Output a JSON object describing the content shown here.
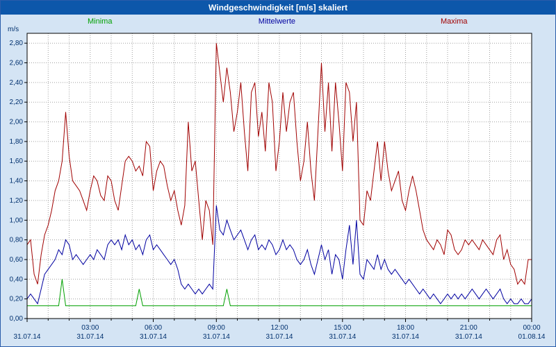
{
  "window": {
    "title": "Windgeschwindigkeit [m/s] skaliert"
  },
  "colors": {
    "background": "#d4e4f4",
    "titlebar": "#0d57aa",
    "window_border": "#2a5caa",
    "grid": "#a0a0a0",
    "axis_text": "#00306e",
    "plot_background": "#ffffff",
    "plot_border": "#000000",
    "minima": "#00a000",
    "mittelwerte": "#0000a0",
    "maxima": "#a00000"
  },
  "chart_data": {
    "type": "line",
    "title": "Windgeschwindigkeit [m/s] skaliert",
    "ylabel": "m/s",
    "xlabel": "",
    "grid": true,
    "legend_position": "top",
    "x_range_hours": [
      0,
      24
    ],
    "ylim": [
      0,
      2.9
    ],
    "sample_interval_minutes": 10,
    "y_tick_values": [
      0,
      0.2,
      0.4,
      0.6,
      0.8,
      1.0,
      1.2,
      1.4,
      1.6,
      1.8,
      2.0,
      2.2,
      2.4,
      2.6,
      2.8
    ],
    "y_tick_labels": [
      "0,00",
      "0,20",
      "0,40",
      "0,60",
      "0,80",
      "1,00",
      "1,20",
      "1,40",
      "1,60",
      "1,80",
      "2,00",
      "2,20",
      "2,40",
      "2,60",
      "2,80"
    ],
    "x_tick_hours": [
      3,
      6,
      9,
      12,
      15,
      18,
      21,
      24
    ],
    "x_tick_labels": [
      "03:00",
      "06:00",
      "09:00",
      "12:00",
      "15:00",
      "18:00",
      "21:00",
      "00:00"
    ],
    "x_date_hours": [
      0,
      3,
      6,
      9,
      12,
      15,
      18,
      21,
      24
    ],
    "x_date_labels": [
      "31.07.14",
      "31.07.14",
      "31.07.14",
      "31.07.14",
      "31.07.14",
      "31.07.14",
      "31.07.14",
      "31.07.14",
      "01.08.14"
    ],
    "series": [
      {
        "name": "Minima",
        "color": "#00a000",
        "values": [
          0.13,
          0.13,
          0.13,
          0.13,
          0.13,
          0.13,
          0.13,
          0.13,
          0.13,
          0.13,
          0.4,
          0.13,
          0.13,
          0.13,
          0.13,
          0.13,
          0.13,
          0.13,
          0.13,
          0.13,
          0.13,
          0.13,
          0.13,
          0.13,
          0.13,
          0.13,
          0.13,
          0.13,
          0.13,
          0.13,
          0.13,
          0.13,
          0.3,
          0.13,
          0.13,
          0.13,
          0.13,
          0.13,
          0.13,
          0.13,
          0.13,
          0.13,
          0.13,
          0.13,
          0.13,
          0.13,
          0.13,
          0.13,
          0.13,
          0.13,
          0.13,
          0.13,
          0.13,
          0.13,
          0.13,
          0.13,
          0.13,
          0.3,
          0.13,
          0.13,
          0.13,
          0.13,
          0.13,
          0.13,
          0.13,
          0.13,
          0.13,
          0.13,
          0.13,
          0.13,
          0.13,
          0.13,
          0.13,
          0.13,
          0.13,
          0.13,
          0.13,
          0.13,
          0.13,
          0.13,
          0.13,
          0.13,
          0.13,
          0.13,
          0.13,
          0.13,
          0.13,
          0.13,
          0.13,
          0.13,
          0.13,
          0.13,
          0.13,
          0.13,
          0.13,
          0.13,
          0.13,
          0.13,
          0.13,
          0.13,
          0.13,
          0.13,
          0.13,
          0.13,
          0.13,
          0.13,
          0.13,
          0.13,
          0.13,
          0.13,
          0.13,
          0.13,
          0.13,
          0.13,
          0.13,
          0.13,
          0.13,
          0.13,
          0.13,
          0.13,
          0.13,
          0.13,
          0.13,
          0.13,
          0.13,
          0.13,
          0.13,
          0.13,
          0.13,
          0.13,
          0.13,
          0.13,
          0.13,
          0.13,
          0.13,
          0.13,
          0.13,
          0.13,
          0.13,
          0.13,
          0.13,
          0.13,
          0.13,
          0.13,
          0.13
        ]
      },
      {
        "name": "Mittelwerte",
        "color": "#0000a0",
        "values": [
          0.2,
          0.25,
          0.2,
          0.15,
          0.3,
          0.45,
          0.5,
          0.55,
          0.6,
          0.7,
          0.65,
          0.8,
          0.75,
          0.6,
          0.65,
          0.6,
          0.55,
          0.6,
          0.65,
          0.6,
          0.7,
          0.65,
          0.6,
          0.75,
          0.8,
          0.75,
          0.8,
          0.7,
          0.85,
          0.75,
          0.8,
          0.7,
          0.75,
          0.65,
          0.8,
          0.85,
          0.7,
          0.75,
          0.7,
          0.65,
          0.6,
          0.55,
          0.6,
          0.5,
          0.35,
          0.3,
          0.35,
          0.3,
          0.25,
          0.3,
          0.25,
          0.3,
          0.35,
          0.3,
          1.15,
          0.9,
          0.85,
          1.0,
          0.9,
          0.8,
          0.85,
          0.9,
          0.8,
          0.7,
          0.8,
          0.85,
          0.7,
          0.75,
          0.7,
          0.8,
          0.75,
          0.65,
          0.7,
          0.8,
          0.7,
          0.75,
          0.7,
          0.6,
          0.55,
          0.6,
          0.7,
          0.55,
          0.45,
          0.6,
          0.75,
          0.6,
          0.7,
          0.45,
          0.65,
          0.6,
          0.4,
          0.7,
          0.95,
          0.55,
          1.0,
          0.45,
          0.4,
          0.6,
          0.55,
          0.5,
          0.65,
          0.5,
          0.6,
          0.5,
          0.45,
          0.5,
          0.45,
          0.4,
          0.35,
          0.4,
          0.35,
          0.3,
          0.25,
          0.3,
          0.25,
          0.2,
          0.25,
          0.2,
          0.15,
          0.2,
          0.25,
          0.2,
          0.25,
          0.2,
          0.25,
          0.2,
          0.25,
          0.3,
          0.25,
          0.2,
          0.25,
          0.3,
          0.25,
          0.2,
          0.25,
          0.3,
          0.2,
          0.15,
          0.2,
          0.15,
          0.15,
          0.2,
          0.15,
          0.15,
          0.2
        ]
      },
      {
        "name": "Maxima",
        "color": "#a00000",
        "values": [
          0.75,
          0.8,
          0.45,
          0.35,
          0.65,
          0.85,
          0.95,
          1.1,
          1.3,
          1.4,
          1.6,
          2.1,
          1.65,
          1.4,
          1.35,
          1.3,
          1.2,
          1.1,
          1.3,
          1.45,
          1.4,
          1.25,
          1.2,
          1.45,
          1.4,
          1.2,
          1.1,
          1.35,
          1.6,
          1.65,
          1.6,
          1.5,
          1.55,
          1.45,
          1.8,
          1.75,
          1.3,
          1.5,
          1.6,
          1.55,
          1.35,
          1.2,
          1.3,
          1.1,
          0.95,
          1.15,
          2.0,
          1.5,
          1.6,
          1.2,
          0.8,
          1.2,
          1.1,
          0.75,
          2.8,
          2.5,
          2.2,
          2.55,
          2.3,
          1.9,
          2.1,
          2.4,
          1.9,
          1.5,
          2.3,
          2.4,
          1.85,
          2.1,
          1.7,
          2.4,
          2.2,
          1.5,
          1.8,
          2.3,
          1.9,
          2.2,
          2.3,
          1.8,
          1.4,
          1.6,
          2.0,
          1.5,
          1.2,
          1.9,
          2.6,
          1.9,
          2.4,
          1.7,
          2.4,
          2.0,
          1.5,
          2.4,
          2.3,
          1.8,
          2.2,
          1.0,
          0.95,
          1.3,
          1.2,
          1.5,
          1.8,
          1.4,
          1.8,
          1.5,
          1.3,
          1.4,
          1.5,
          1.2,
          1.1,
          1.3,
          1.45,
          1.3,
          1.1,
          0.9,
          0.8,
          0.75,
          0.7,
          0.8,
          0.75,
          0.65,
          0.9,
          0.85,
          0.7,
          0.65,
          0.7,
          0.8,
          0.75,
          0.8,
          0.75,
          0.7,
          0.8,
          0.75,
          0.7,
          0.65,
          0.8,
          0.85,
          0.6,
          0.7,
          0.55,
          0.5,
          0.35,
          0.4,
          0.35,
          0.6,
          0.6
        ]
      }
    ]
  }
}
